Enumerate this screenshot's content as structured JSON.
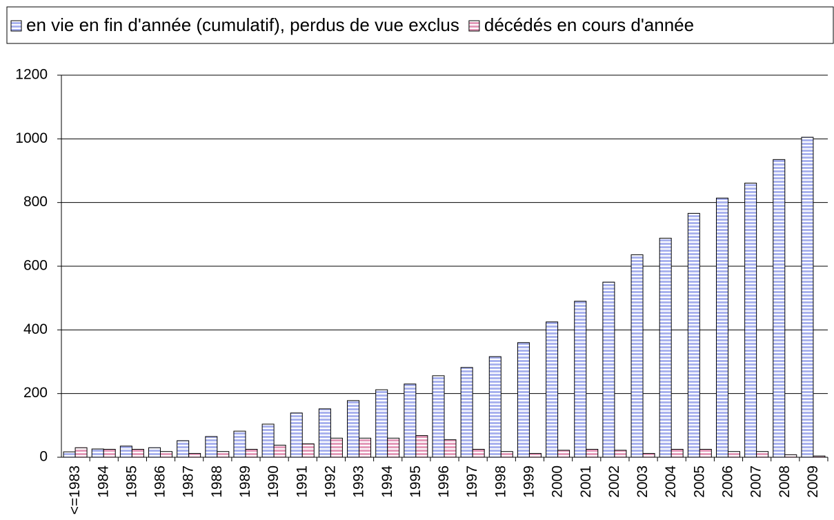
{
  "chart_data": {
    "type": "bar",
    "categories": [
      "<=1983",
      "1984",
      "1985",
      "1986",
      "1987",
      "1988",
      "1989",
      "1990",
      "1991",
      "1992",
      "1993",
      "1994",
      "1995",
      "1996",
      "1997",
      "1998",
      "1999",
      "2000",
      "2001",
      "2002",
      "2003",
      "2004",
      "2005",
      "2006",
      "2007",
      "2008",
      "2009"
    ],
    "series": [
      {
        "name": "en vie en fin d'année (cumulatif), perdus de vue exclus",
        "color": "#a9b2ee",
        "values": [
          17,
          26,
          35,
          30,
          52,
          65,
          82,
          104,
          139,
          152,
          178,
          212,
          230,
          256,
          282,
          316,
          360,
          425,
          490,
          550,
          636,
          688,
          766,
          814,
          861,
          935,
          1005
        ]
      },
      {
        "name": "décédés en cours d'année",
        "color": "#e39ab9",
        "values": [
          30,
          25,
          25,
          18,
          12,
          18,
          25,
          38,
          42,
          60,
          60,
          60,
          68,
          55,
          25,
          18,
          12,
          22,
          25,
          22,
          12,
          25,
          25,
          18,
          18,
          8,
          4
        ]
      }
    ],
    "ylim": [
      0,
      1200
    ],
    "yticks": [
      0,
      200,
      400,
      600,
      800,
      1000,
      1200
    ],
    "grid": true,
    "legend": "top"
  }
}
